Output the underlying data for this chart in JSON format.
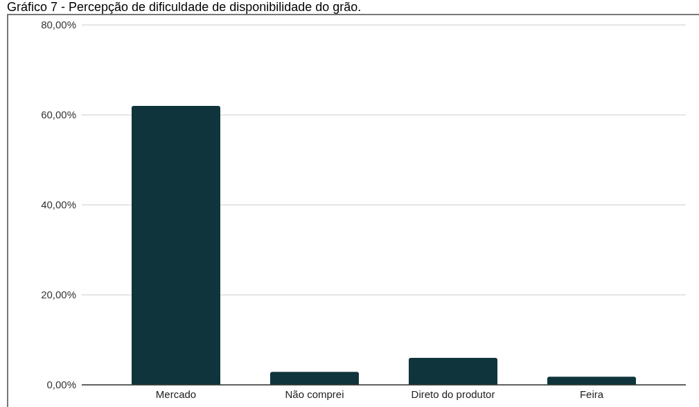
{
  "chart_data": {
    "type": "bar",
    "title": "Gráfico 7 - Percepção de dificuldade de disponibilidade do grão.",
    "categories": [
      "Mercado",
      "Não comprei",
      "Direto do produtor",
      "Feira"
    ],
    "values": [
      62,
      2.9,
      6,
      1.8
    ],
    "color": "#10343c",
    "ylim": [
      0,
      80
    ],
    "yticks": [
      {
        "value": 0,
        "label": "0,00%"
      },
      {
        "value": 20,
        "label": "20,00%"
      },
      {
        "value": 40,
        "label": "40,00%"
      },
      {
        "value": 60,
        "label": "60,00%"
      },
      {
        "value": 80,
        "label": "80,00%"
      }
    ],
    "grid": "y"
  }
}
